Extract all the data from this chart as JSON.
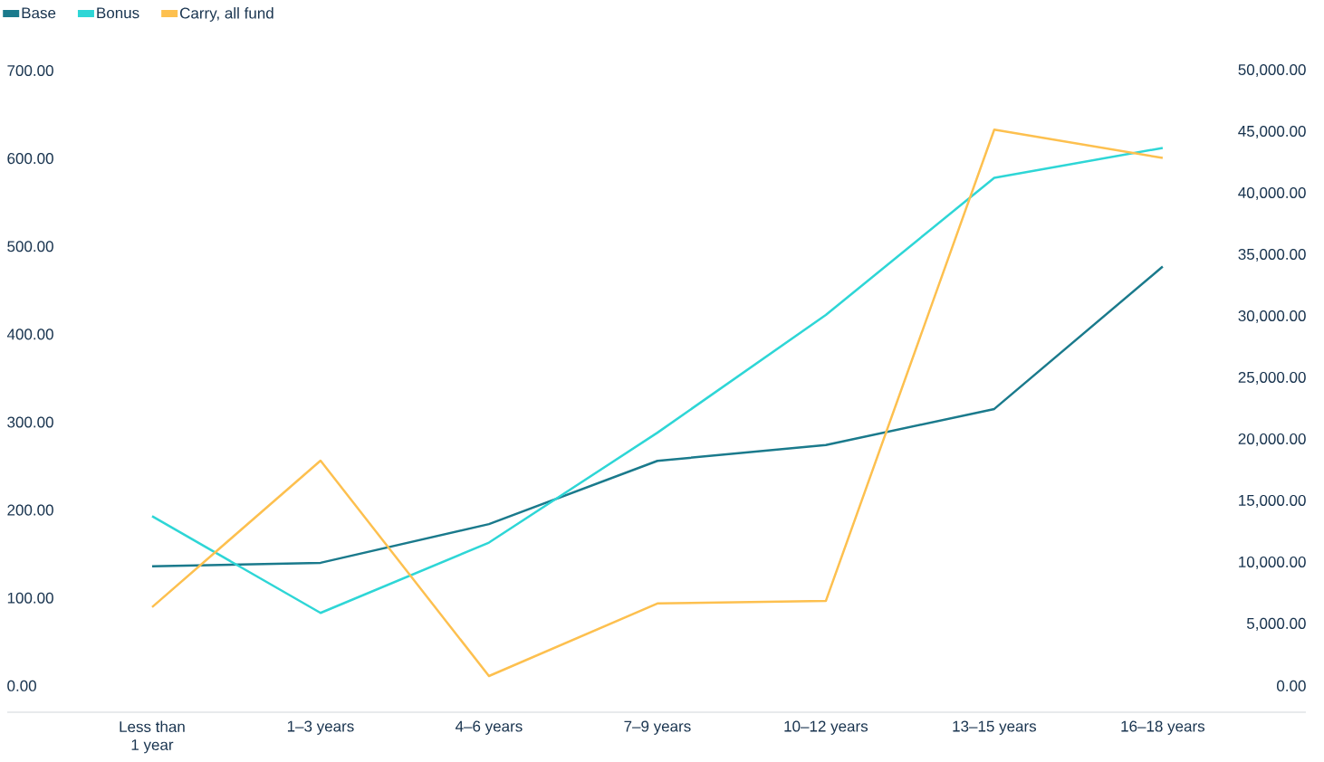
{
  "chart_data": {
    "type": "line",
    "categories": [
      "Less than 1 year",
      "1–3 years",
      "4–6 years",
      "7–9 years",
      "10–12 years",
      "13–15 years",
      "16–18 years"
    ],
    "series": [
      {
        "name": "Base",
        "color": "#1a7a8c",
        "values": [
          136,
          140,
          184,
          256,
          274,
          315,
          477
        ]
      },
      {
        "name": "Bonus",
        "color": "#2ed6d6",
        "values": [
          193,
          83,
          163,
          288,
          422,
          578,
          612
        ]
      },
      {
        "name": "Carry, all fund",
        "color": "#fdc04f",
        "axis": "y2",
        "values": [
          6400,
          18300,
          800,
          6700,
          6900,
          45200,
          42900
        ]
      }
    ],
    "ylim": [
      -30,
      700
    ],
    "yticks": [
      {
        "value": 0,
        "label": "0.00"
      },
      {
        "value": 100,
        "label": "100.00"
      },
      {
        "value": 200,
        "label": "200.00"
      },
      {
        "value": 300,
        "label": "300.00"
      },
      {
        "value": 400,
        "label": "400.00"
      },
      {
        "value": 500,
        "label": "500.00"
      },
      {
        "value": 600,
        "label": "600.00"
      },
      {
        "value": 700,
        "label": "700.00"
      }
    ],
    "y2lim": [
      -2140,
      50000
    ],
    "y2ticks": [
      {
        "value": 0,
        "label": "0.00"
      },
      {
        "value": 5000,
        "label": "5,000.00"
      },
      {
        "value": 10000,
        "label": "10,000.00"
      },
      {
        "value": 15000,
        "label": "15,000.00"
      },
      {
        "value": 20000,
        "label": "20,000.00"
      },
      {
        "value": 25000,
        "label": "25,000.00"
      },
      {
        "value": 30000,
        "label": "30,000.00"
      },
      {
        "value": 35000,
        "label": "35,000.00"
      },
      {
        "value": 40000,
        "label": "40,000.00"
      },
      {
        "value": 45000,
        "label": "45,000.00"
      },
      {
        "value": 50000,
        "label": "50,000.00"
      }
    ],
    "legend": "top left"
  }
}
